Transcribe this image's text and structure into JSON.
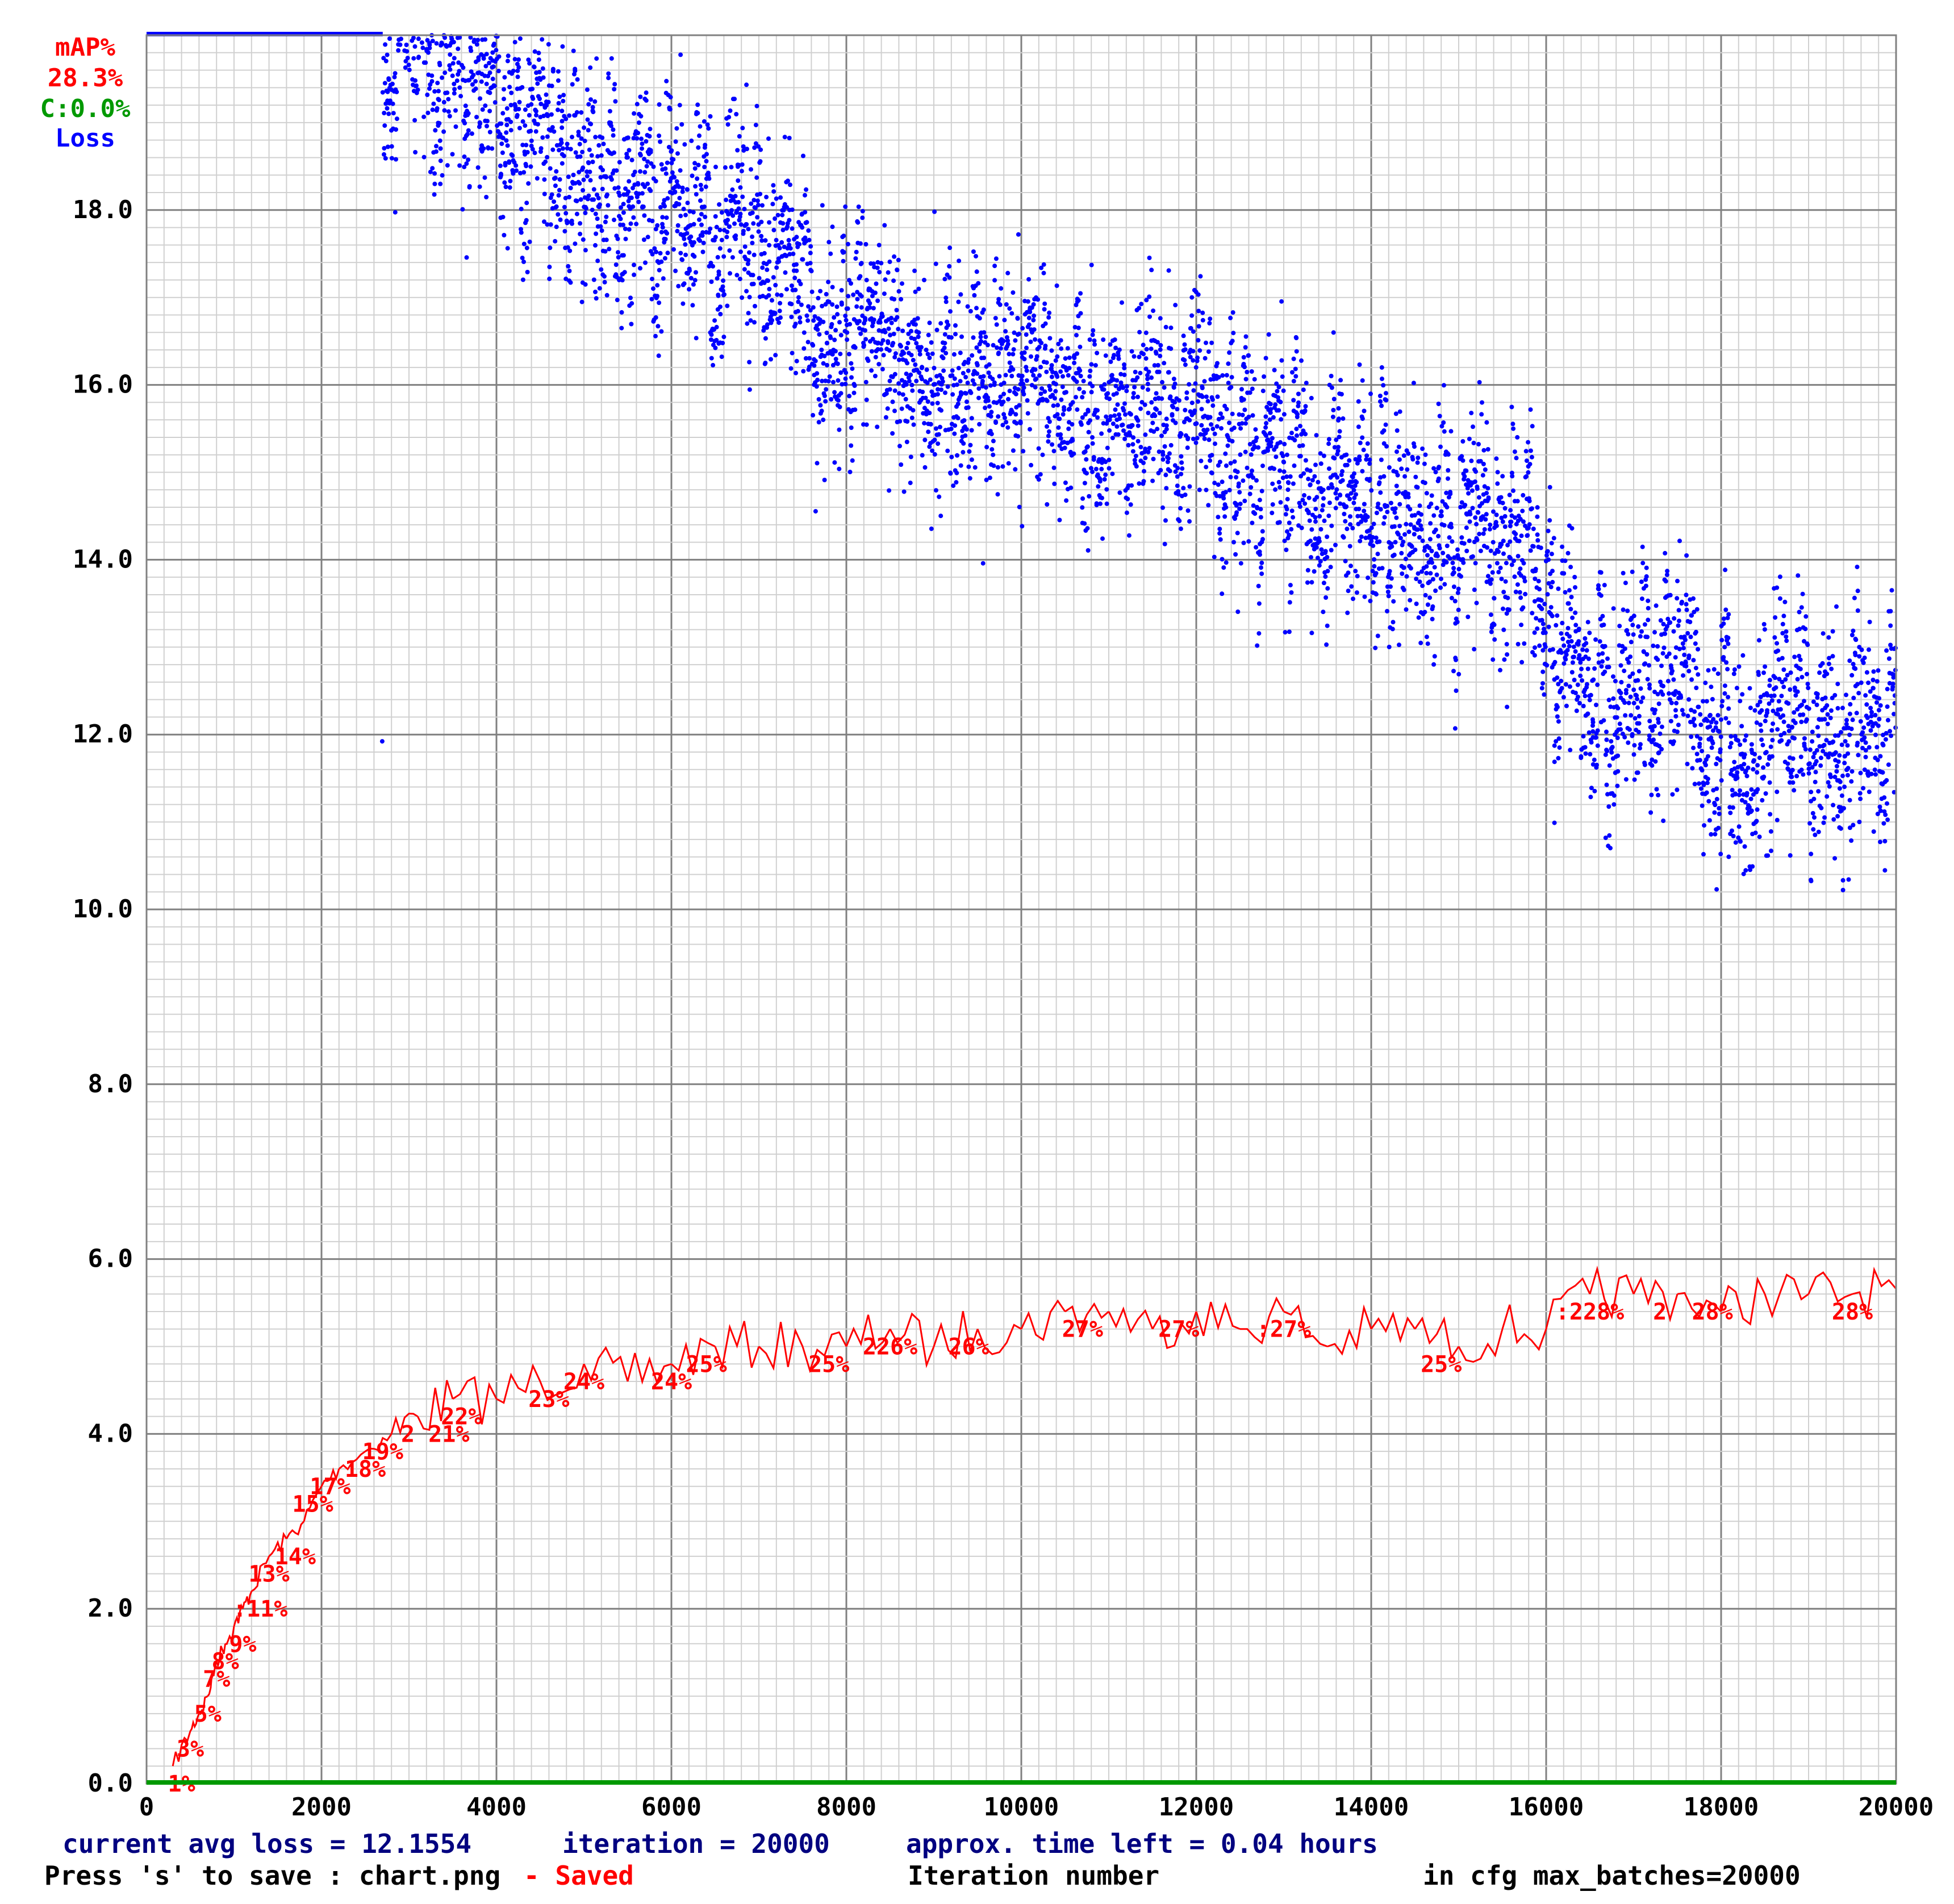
{
  "legend": {
    "map_title": "mAP%",
    "map_value": "28.3%",
    "c_value": "C:0.0%",
    "loss_title": "Loss"
  },
  "status": {
    "current_avg_loss": "current avg loss = 12.1554",
    "iteration": "iteration = 20000",
    "time_left": "approx. time left = 0.04 hours",
    "save_hint": "Press 's' to save : chart.png",
    "saved": "- Saved",
    "xlabel": "Iteration number",
    "max_batches": "in cfg max_batches=20000"
  },
  "colors": {
    "loss": "#0000ff",
    "map": "#ff0000",
    "c": "#009900",
    "grid_major": "#808080",
    "grid_minor": "#d0d0d0",
    "status_text": "#000080"
  },
  "chart_data": {
    "type": "scatter",
    "xlim": [
      0,
      20000
    ],
    "ylim": [
      0,
      20
    ],
    "x_ticks": [
      "0",
      "2000",
      "4000",
      "6000",
      "8000",
      "10000",
      "12000",
      "14000",
      "16000",
      "18000",
      "20000"
    ],
    "y_ticks": [
      "0.0",
      "2.0",
      "4.0",
      "6.0",
      "8.0",
      "10.0",
      "12.0",
      "14.0",
      "16.0",
      "18.0"
    ],
    "grid": true,
    "xlabel": "Iteration number",
    "loss_trend": [
      {
        "x": 2700,
        "y": 20.0
      },
      {
        "x": 3200,
        "y": 19.8
      },
      {
        "x": 4000,
        "y": 19.3
      },
      {
        "x": 5000,
        "y": 18.4
      },
      {
        "x": 6000,
        "y": 18.0
      },
      {
        "x": 7000,
        "y": 17.3
      },
      {
        "x": 8000,
        "y": 16.6
      },
      {
        "x": 9000,
        "y": 16.4
      },
      {
        "x": 10000,
        "y": 16.0
      },
      {
        "x": 11000,
        "y": 15.6
      },
      {
        "x": 12000,
        "y": 15.4
      },
      {
        "x": 13000,
        "y": 14.9
      },
      {
        "x": 14000,
        "y": 14.5
      },
      {
        "x": 15000,
        "y": 14.3
      },
      {
        "x": 15800,
        "y": 14.5
      },
      {
        "x": 16000,
        "y": 13.6
      },
      {
        "x": 16500,
        "y": 12.4
      },
      {
        "x": 17000,
        "y": 12.6
      },
      {
        "x": 18000,
        "y": 12.2
      },
      {
        "x": 19000,
        "y": 12.0
      },
      {
        "x": 20000,
        "y": 12.0
      }
    ],
    "map_series": {
      "name": "mAP%",
      "points": [
        {
          "x": 300,
          "y": 1
        },
        {
          "x": 500,
          "y": 3
        },
        {
          "x": 600,
          "y": 4
        },
        {
          "x": 700,
          "y": 5
        },
        {
          "x": 800,
          "y": 7
        },
        {
          "x": 900,
          "y": 8
        },
        {
          "x": 1000,
          "y": 9
        },
        {
          "x": 1100,
          "y": 10
        },
        {
          "x": 1200,
          "y": 11
        },
        {
          "x": 1400,
          "y": 13
        },
        {
          "x": 1600,
          "y": 14
        },
        {
          "x": 1800,
          "y": 15
        },
        {
          "x": 2000,
          "y": 17
        },
        {
          "x": 2200,
          "y": 18
        },
        {
          "x": 2500,
          "y": 19
        },
        {
          "x": 2800,
          "y": 20
        },
        {
          "x": 3100,
          "y": 21
        },
        {
          "x": 3500,
          "y": 22
        },
        {
          "x": 4000,
          "y": 22
        },
        {
          "x": 4500,
          "y": 23
        },
        {
          "x": 5000,
          "y": 24
        },
        {
          "x": 5500,
          "y": 23
        },
        {
          "x": 6000,
          "y": 24
        },
        {
          "x": 6500,
          "y": 25
        },
        {
          "x": 7000,
          "y": 25
        },
        {
          "x": 7500,
          "y": 25
        },
        {
          "x": 8000,
          "y": 25
        },
        {
          "x": 8500,
          "y": 26
        },
        {
          "x": 9000,
          "y": 25
        },
        {
          "x": 9500,
          "y": 26
        },
        {
          "x": 10000,
          "y": 26
        },
        {
          "x": 10500,
          "y": 27
        },
        {
          "x": 11000,
          "y": 27
        },
        {
          "x": 11500,
          "y": 26
        },
        {
          "x": 12000,
          "y": 27
        },
        {
          "x": 12500,
          "y": 26
        },
        {
          "x": 13000,
          "y": 27
        },
        {
          "x": 13500,
          "y": 25
        },
        {
          "x": 14000,
          "y": 26
        },
        {
          "x": 14500,
          "y": 26
        },
        {
          "x": 15000,
          "y": 25
        },
        {
          "x": 15500,
          "y": 26
        },
        {
          "x": 16000,
          "y": 26
        },
        {
          "x": 16500,
          "y": 28
        },
        {
          "x": 17000,
          "y": 28
        },
        {
          "x": 17500,
          "y": 28
        },
        {
          "x": 18000,
          "y": 27
        },
        {
          "x": 18500,
          "y": 28
        },
        {
          "x": 19000,
          "y": 28
        },
        {
          "x": 19500,
          "y": 28
        },
        {
          "x": 20000,
          "y": 28.3
        }
      ]
    },
    "map_labels": [
      {
        "x": 400,
        "y": 0,
        "text": "1%"
      },
      {
        "x": 500,
        "y": 2,
        "text": "3%"
      },
      {
        "x": 700,
        "y": 4,
        "text": "5%"
      },
      {
        "x": 800,
        "y": 6,
        "text": "7%"
      },
      {
        "x": 900,
        "y": 7,
        "text": "8%"
      },
      {
        "x": 1100,
        "y": 8,
        "text": "9%"
      },
      {
        "x": 1300,
        "y": 10,
        "text": ":11%"
      },
      {
        "x": 1400,
        "y": 12,
        "text": "13%"
      },
      {
        "x": 1700,
        "y": 13,
        "text": "14%"
      },
      {
        "x": 1900,
        "y": 16,
        "text": "15%"
      },
      {
        "x": 2100,
        "y": 17,
        "text": "17%"
      },
      {
        "x": 2500,
        "y": 18,
        "text": "18%"
      },
      {
        "x": 2700,
        "y": 19,
        "text": "19%"
      },
      {
        "x": 3300,
        "y": 20,
        "text": "2 21%"
      },
      {
        "x": 3600,
        "y": 21,
        "text": "22%"
      },
      {
        "x": 4600,
        "y": 22,
        "text": "23%"
      },
      {
        "x": 5000,
        "y": 23,
        "text": "24%"
      },
      {
        "x": 6000,
        "y": 23,
        "text": "24%"
      },
      {
        "x": 6400,
        "y": 24,
        "text": "25%"
      },
      {
        "x": 7800,
        "y": 24,
        "text": "25%"
      },
      {
        "x": 8500,
        "y": 25,
        "text": "226%"
      },
      {
        "x": 9400,
        "y": 25,
        "text": "26%"
      },
      {
        "x": 10700,
        "y": 26,
        "text": "27%"
      },
      {
        "x": 11800,
        "y": 26,
        "text": "27%"
      },
      {
        "x": 13000,
        "y": 26,
        "text": ":27%"
      },
      {
        "x": 14800,
        "y": 24,
        "text": "25%"
      },
      {
        "x": 16500,
        "y": 27,
        "text": ":228%"
      },
      {
        "x": 17300,
        "y": 27,
        "text": "2"
      },
      {
        "x": 17900,
        "y": 27,
        "text": "28%"
      },
      {
        "x": 19500,
        "y": 27,
        "text": "28%"
      }
    ],
    "c_series": {
      "name": "C",
      "points": [
        {
          "x": 0,
          "y": 0
        },
        {
          "x": 20000,
          "y": 0
        }
      ]
    }
  }
}
